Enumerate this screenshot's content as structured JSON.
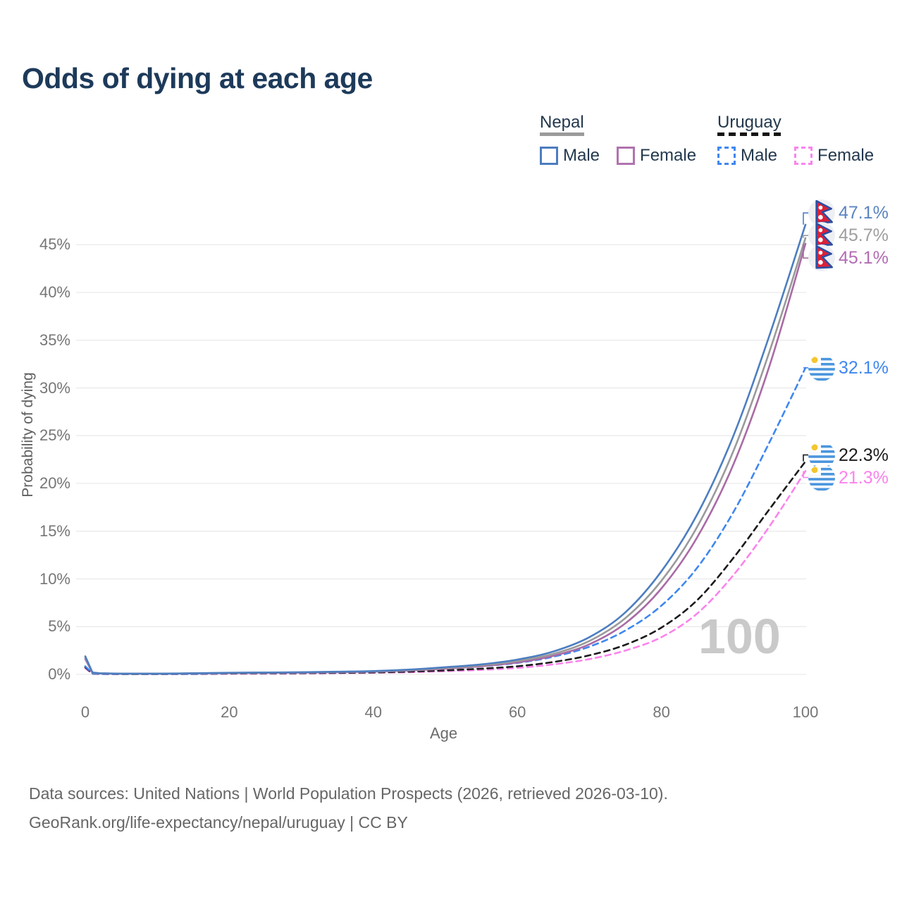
{
  "title": "Odds of dying at each age",
  "legend": {
    "groups": [
      {
        "name": "Nepal",
        "line_style": "solid",
        "underline_color": "#9b9b9b",
        "items": [
          {
            "label": "Male",
            "color": "#4d7dbf"
          },
          {
            "label": "Female",
            "color": "#b173ae"
          }
        ]
      },
      {
        "name": "Uruguay",
        "line_style": "dashed",
        "underline_color": "#151515",
        "items": [
          {
            "label": "Male",
            "color": "#3f87f0"
          },
          {
            "label": "Female",
            "color": "#fb83ec"
          }
        ]
      }
    ]
  },
  "watermark": "100",
  "footer": {
    "line1": "Data sources: United Nations | World Population Prospects (2026, retrieved 2026-03-10).",
    "line2": "GeoRank.org/life-expectancy/nepal/uruguay | CC BY"
  },
  "chart_data": {
    "type": "line",
    "title": "Odds of dying at each age",
    "xlabel": "Age",
    "ylabel": "Probability of dying",
    "xlim": [
      0,
      100
    ],
    "ylim": [
      0,
      47.5
    ],
    "x_ticks": [
      0,
      20,
      40,
      60,
      80,
      100
    ],
    "y_ticks_percent": [
      0,
      5,
      10,
      15,
      20,
      25,
      30,
      35,
      40,
      45
    ],
    "grid": "horizontal",
    "legend_position": "top-right",
    "ages": [
      0,
      1,
      2,
      5,
      10,
      15,
      20,
      25,
      30,
      35,
      40,
      45,
      50,
      55,
      60,
      65,
      70,
      75,
      80,
      85,
      90,
      95,
      100
    ],
    "series": [
      {
        "name": "Uruguay Female",
        "country": "Uruguay",
        "sex": "Female",
        "flag": "uruguay",
        "dash": "dashed",
        "color": "#fb83ec",
        "label_color": "#fb83ec",
        "end_label": "21.3%",
        "end_value": 21.3,
        "values": [
          0.65,
          0.07,
          0.04,
          0.03,
          0.03,
          0.04,
          0.06,
          0.08,
          0.1,
          0.13,
          0.17,
          0.23,
          0.33,
          0.47,
          0.68,
          1.05,
          1.6,
          2.5,
          3.9,
          6.4,
          10.4,
          15.5,
          21.3
        ]
      },
      {
        "name": "Uruguay Both sexes",
        "country": "Uruguay",
        "sex": "Both",
        "flag": "uruguay",
        "dash": "dashed",
        "color": "#1b1b1b",
        "label_color": "#1b1b1b",
        "end_label": "22.3%",
        "end_value": 22.3,
        "values": [
          0.75,
          0.08,
          0.05,
          0.03,
          0.03,
          0.05,
          0.09,
          0.11,
          0.13,
          0.16,
          0.21,
          0.29,
          0.42,
          0.6,
          0.85,
          1.3,
          2.0,
          3.1,
          4.9,
          7.8,
          12.2,
          17.3,
          22.3
        ]
      },
      {
        "name": "Uruguay Male",
        "country": "Uruguay",
        "sex": "Male",
        "flag": "uruguay",
        "dash": "dashed",
        "color": "#3f87f0",
        "label_color": "#3f87f0",
        "end_label": "32.1%",
        "end_value": 32.1,
        "values": [
          0.85,
          0.1,
          0.06,
          0.04,
          0.04,
          0.07,
          0.12,
          0.15,
          0.18,
          0.22,
          0.28,
          0.4,
          0.6,
          0.85,
          1.2,
          1.85,
          2.9,
          4.6,
          7.2,
          11.2,
          17.0,
          24.3,
          32.1
        ]
      },
      {
        "name": "Nepal Female",
        "country": "Nepal",
        "sex": "Female",
        "flag": "nepal",
        "dash": "solid",
        "color": "#a96ba5",
        "label_color": "#b36cb3",
        "end_label": "45.1%",
        "end_value": 45.1,
        "values": [
          1.6,
          0.17,
          0.1,
          0.07,
          0.07,
          0.1,
          0.13,
          0.16,
          0.19,
          0.23,
          0.29,
          0.41,
          0.6,
          0.85,
          1.25,
          1.95,
          3.15,
          5.35,
          9.0,
          14.4,
          22.0,
          32.3,
          45.1
        ]
      },
      {
        "name": "Nepal Both sexes",
        "country": "Nepal",
        "sex": "Both",
        "flag": "nepal",
        "dash": "solid",
        "color": "#9a9a9a",
        "label_color": "#9f9f9f",
        "end_label": "45.7%",
        "end_value": 45.7,
        "values": [
          1.75,
          0.18,
          0.11,
          0.07,
          0.07,
          0.11,
          0.15,
          0.18,
          0.21,
          0.26,
          0.32,
          0.46,
          0.68,
          0.95,
          1.4,
          2.15,
          3.5,
          5.9,
          9.8,
          15.5,
          23.4,
          33.8,
          45.7
        ]
      },
      {
        "name": "Nepal Male",
        "country": "Nepal",
        "sex": "Male",
        "flag": "nepal",
        "dash": "solid",
        "color": "#4d7ec0",
        "label_color": "#5b84c4",
        "end_label": "47.1%",
        "end_value": 47.1,
        "values": [
          1.9,
          0.2,
          0.12,
          0.08,
          0.08,
          0.12,
          0.17,
          0.2,
          0.23,
          0.28,
          0.35,
          0.5,
          0.75,
          1.05,
          1.55,
          2.4,
          3.9,
          6.5,
          10.8,
          16.8,
          25.0,
          35.5,
          47.1
        ]
      }
    ]
  }
}
